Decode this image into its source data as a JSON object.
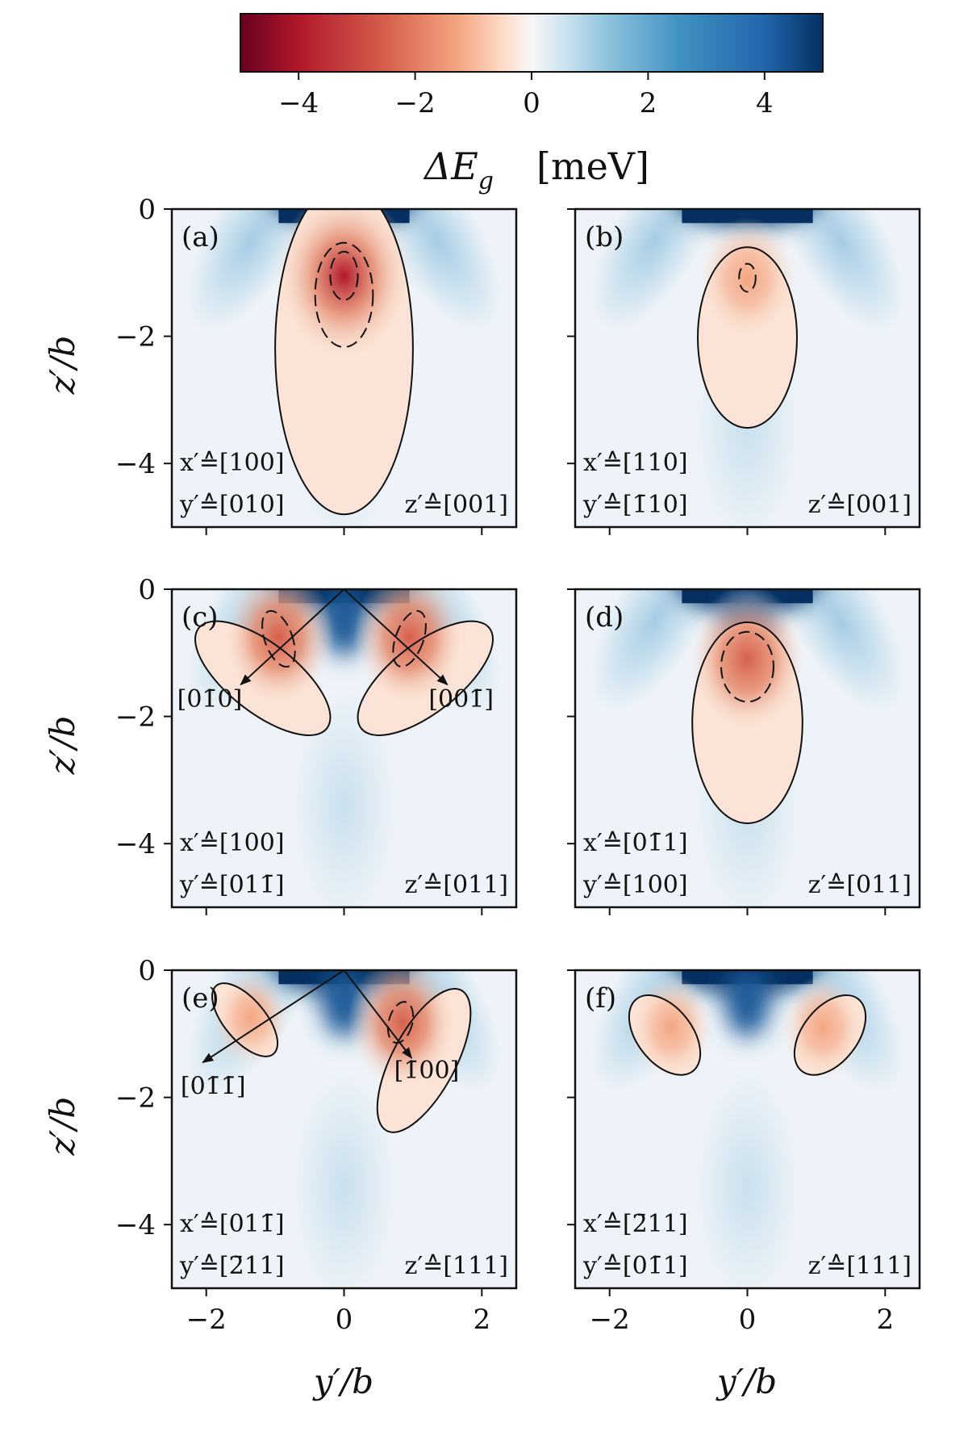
{
  "chart_data": {
    "type": "heatmap",
    "colorbar": {
      "label": "ΔE_g [meV]",
      "label_symbol": "ΔE",
      "label_sub": "g",
      "label_unit": "[meV]",
      "range": [
        -5,
        5
      ],
      "ticks": [
        -4,
        -2,
        0,
        2,
        4
      ],
      "tick_labels": [
        "−4",
        "−2",
        "0",
        "2",
        "4"
      ],
      "colors": {
        "negative": "#67001f",
        "zero": "#f7f7f7",
        "positive": "#053061"
      }
    },
    "axes": {
      "xlabel": "y′/b",
      "ylabel": "z′/b",
      "xlim": [
        -2.5,
        2.5
      ],
      "ylim": [
        -5,
        0
      ],
      "xticks": [
        -2,
        0,
        2
      ],
      "xtick_labels": [
        "−2",
        "0",
        "2"
      ],
      "yticks": [
        0,
        -2,
        -4
      ],
      "ytick_labels": [
        "0",
        "−2",
        "−4"
      ]
    },
    "panels": [
      {
        "label": "(a)",
        "orientation": [
          "x′≙[100]",
          "y′≙[010]",
          "z′≙[001]"
        ],
        "solid_contours": [
          {
            "cx": 0,
            "cy": -2.2,
            "rx": 1.0,
            "ry": 2.6
          }
        ],
        "dashed_contours": [
          {
            "cx": 0,
            "cy": -1.35,
            "rx": 0.42,
            "ry": 0.82
          },
          {
            "cx": 0,
            "cy": -1.05,
            "rx": 0.2,
            "ry": 0.38
          }
        ],
        "minima": [
          {
            "x": 0,
            "y": -1.05,
            "value": -4.5
          }
        ],
        "arrows": []
      },
      {
        "label": "(b)",
        "orientation": [
          "x′≙[110]",
          "y′≙[1̄10]",
          "z′≙[001]"
        ],
        "solid_contours": [
          {
            "cx": 0,
            "cy": -2.02,
            "rx": 0.72,
            "ry": 1.42
          }
        ],
        "dashed_contours": [
          {
            "cx": 0,
            "cy": -1.08,
            "rx": 0.12,
            "ry": 0.22
          }
        ],
        "minima": [
          {
            "x": 0,
            "y": -1.1,
            "value": -2.2
          }
        ],
        "arrows": []
      },
      {
        "label": "(c)",
        "orientation": [
          "x′≙[100]",
          "y′≙[011̄]",
          "z′≙[011]"
        ],
        "solid_contours": [
          {
            "cx": -1.18,
            "cy": -1.4,
            "rx": 0.5,
            "ry": 1.28,
            "rot": 52
          },
          {
            "cx": 1.18,
            "cy": -1.4,
            "rx": 0.5,
            "ry": 1.28,
            "rot": -52
          }
        ],
        "dashed_contours": [
          {
            "cx": -0.95,
            "cy": -0.78,
            "rx": 0.2,
            "ry": 0.46,
            "rot": 20
          },
          {
            "cx": 0.95,
            "cy": -0.78,
            "rx": 0.2,
            "ry": 0.46,
            "rot": -20
          }
        ],
        "minima": [
          {
            "x": -0.95,
            "y": -0.75,
            "value": -3.0
          },
          {
            "x": 0.95,
            "y": -0.75,
            "value": -3.0
          }
        ],
        "arrows": [
          {
            "x0": 0,
            "y0": 0,
            "x1": -1.5,
            "y1": -1.5,
            "label": "[01̄0]",
            "lx": -1.95,
            "ly": -1.85
          },
          {
            "x0": 0,
            "y0": 0,
            "x1": 1.5,
            "y1": -1.5,
            "label": "[001̄]",
            "lx": 1.7,
            "ly": -1.85
          }
        ]
      },
      {
        "label": "(d)",
        "orientation": [
          "x′≙[01̄1]",
          "y′≙[100]",
          "z′≙[011]"
        ],
        "solid_contours": [
          {
            "cx": 0,
            "cy": -2.1,
            "rx": 0.8,
            "ry": 1.58
          }
        ],
        "dashed_contours": [
          {
            "cx": 0,
            "cy": -1.22,
            "rx": 0.38,
            "ry": 0.55
          }
        ],
        "minima": [
          {
            "x": 0,
            "y": -1.1,
            "value": -3.3
          }
        ],
        "arrows": []
      },
      {
        "label": "(e)",
        "orientation": [
          "x′≙[011̄]",
          "y′≙[2̄11]",
          "z′≙[111]"
        ],
        "solid_contours": [
          {
            "cx": -1.44,
            "cy": -0.78,
            "rx": 0.3,
            "ry": 0.7,
            "rot": 40
          },
          {
            "cx": 1.16,
            "cy": -1.42,
            "rx": 0.46,
            "ry": 1.25,
            "rot": -28
          }
        ],
        "dashed_contours": [
          {
            "cx": 0.82,
            "cy": -0.82,
            "rx": 0.17,
            "ry": 0.33,
            "rot": -15
          }
        ],
        "minima": [
          {
            "x": 0.85,
            "y": -0.82,
            "value": -2.8
          },
          {
            "x": -1.35,
            "y": -0.75,
            "value": -0.9
          }
        ],
        "arrows": [
          {
            "x0": 0,
            "y0": 0,
            "x1": -2.05,
            "y1": -1.45,
            "label": "[01̄1̄]",
            "lx": -1.9,
            "ly": -1.95
          },
          {
            "x0": 0,
            "y0": 0,
            "x1": 0.98,
            "y1": -1.38,
            "label": "[1̄00]",
            "lx": 1.2,
            "ly": -1.7
          }
        ]
      },
      {
        "label": "(f)",
        "orientation": [
          "x′≙[2̄11]",
          "y′≙[01̄1]",
          "z′≙[111]"
        ],
        "solid_contours": [
          {
            "cx": -1.2,
            "cy": -1.02,
            "rx": 0.4,
            "ry": 0.72,
            "rot": 38
          },
          {
            "cx": 1.2,
            "cy": -1.02,
            "rx": 0.4,
            "ry": 0.72,
            "rot": -38
          }
        ],
        "dashed_contours": [],
        "minima": [
          {
            "x": -1.1,
            "y": -0.9,
            "value": -1.3
          },
          {
            "x": 1.1,
            "y": -0.9,
            "value": -1.3
          }
        ],
        "arrows": []
      }
    ]
  }
}
